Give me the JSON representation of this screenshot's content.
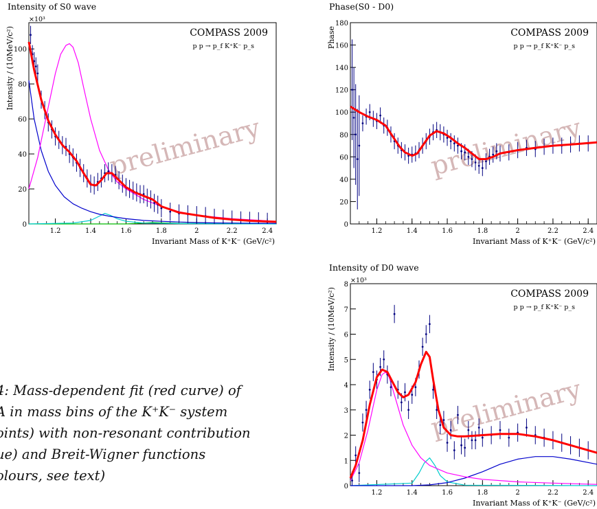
{
  "reaction": "p p → p_f K⁺K⁻ p_s",
  "caption": {
    "lines": [
      "4: Mass-dependent fit (red curve) of",
      "A in mass bins of the K⁺K⁻ system",
      "oints) with non-resonant contribution",
      "ue) and Breit-Wigner functions",
      "olours, see text)"
    ]
  },
  "colors": {
    "fit": "#ff0000",
    "background": "#0000cc",
    "bw1": "#ff00ff",
    "bw2": "#00cccc",
    "bw3": "#00bb00",
    "points": "#000080",
    "watermark": "#c8a0a0"
  },
  "chart_data": [
    {
      "type": "line",
      "title": "Intensity of S0 wave",
      "experiment": "COMPASS 2009",
      "watermark": "preliminary",
      "xlabel": "Invariant Mass of K⁺K⁻ (GeV/c²)",
      "ylabel": "Intensity / (10MeV/c²)",
      "yexponent": "×10³",
      "xlim": [
        1.05,
        2.45
      ],
      "ylim": [
        0,
        115
      ],
      "xticks": [
        "1.2",
        "1.4",
        "1.6",
        "1.8",
        "2",
        "2.2",
        "2.4"
      ],
      "yticks": [
        "0",
        "20",
        "40",
        "60",
        "80",
        "100"
      ],
      "series": [
        {
          "role": "fit",
          "x": [
            1.05,
            1.08,
            1.12,
            1.16,
            1.2,
            1.24,
            1.28,
            1.32,
            1.36,
            1.4,
            1.43,
            1.46,
            1.49,
            1.52,
            1.56,
            1.6,
            1.65,
            1.7,
            1.75,
            1.8,
            1.9,
            2.0,
            2.1,
            2.2,
            2.3,
            2.45
          ],
          "y": [
            104,
            88,
            71,
            59,
            51,
            45,
            41,
            36,
            29,
            22.5,
            22,
            25,
            29,
            29,
            25,
            21,
            18,
            16,
            14,
            10,
            6.5,
            5,
            3.5,
            2.5,
            1.8,
            1.2
          ]
        },
        {
          "role": "background",
          "x": [
            1.05,
            1.08,
            1.12,
            1.16,
            1.2,
            1.25,
            1.3,
            1.35,
            1.4,
            1.45,
            1.5,
            1.6,
            1.7,
            1.8,
            1.9,
            2.0,
            2.1,
            2.2,
            2.3,
            2.45
          ],
          "y": [
            82,
            60,
            42,
            30,
            22,
            15.5,
            11.5,
            9,
            7,
            5.5,
            4.5,
            3,
            2,
            1.5,
            1.1,
            0.8,
            0.6,
            0.5,
            0.4,
            0.3
          ]
        },
        {
          "role": "bw1",
          "x": [
            1.05,
            1.1,
            1.15,
            1.2,
            1.23,
            1.26,
            1.28,
            1.3,
            1.33,
            1.36,
            1.4,
            1.45,
            1.5,
            1.55,
            1.6,
            1.7,
            1.8,
            1.9,
            2.0,
            2.2,
            2.45
          ],
          "y": [
            20,
            38,
            62,
            86,
            97,
            102,
            103,
            101,
            92,
            78,
            60,
            42,
            31,
            24,
            20,
            14,
            10,
            7,
            5,
            3,
            1.5
          ]
        },
        {
          "role": "bw2",
          "x": [
            1.05,
            1.3,
            1.4,
            1.45,
            1.48,
            1.51,
            1.55,
            1.6,
            1.7,
            1.9,
            2.45
          ],
          "y": [
            0,
            0.5,
            2,
            4.5,
            6,
            5,
            3,
            1.5,
            0.5,
            0.2,
            0
          ]
        },
        {
          "role": "bw3",
          "x": [
            1.05,
            1.6,
            1.7,
            1.75,
            1.8,
            1.9,
            2.45
          ],
          "y": [
            0,
            0,
            0.5,
            0.8,
            0.6,
            0.3,
            0.1
          ]
        },
        {
          "role": "points",
          "x": [
            1.06,
            1.07,
            1.08,
            1.09,
            1.1,
            1.12,
            1.14,
            1.16,
            1.18,
            1.2,
            1.22,
            1.24,
            1.26,
            1.28,
            1.3,
            1.32,
            1.34,
            1.36,
            1.38,
            1.4,
            1.42,
            1.44,
            1.46,
            1.48,
            1.5,
            1.52,
            1.54,
            1.56,
            1.58,
            1.6,
            1.62,
            1.64,
            1.66,
            1.68,
            1.7,
            1.72,
            1.74,
            1.76,
            1.78,
            1.8,
            1.85,
            1.9,
            1.95,
            2.0,
            2.05,
            2.1,
            2.15,
            2.2,
            2.25,
            2.3,
            2.35,
            2.4
          ],
          "y": [
            108,
            97,
            93,
            90,
            86,
            71,
            65,
            58,
            54,
            50,
            48,
            45,
            44,
            40,
            38,
            35,
            32,
            29,
            26,
            23,
            22,
            24,
            26,
            29,
            30,
            29,
            28,
            25,
            23,
            21,
            20,
            19,
            18,
            17,
            17,
            15,
            14,
            12,
            11,
            9,
            7,
            6,
            5.5,
            5,
            4.5,
            3.5,
            3,
            2.5,
            2,
            1.8,
            1.5,
            1.2
          ]
        }
      ]
    },
    {
      "type": "line",
      "title": "Phase(S0 - D0)",
      "experiment": "COMPASS 2009",
      "watermark": "preliminary",
      "xlabel": "Invariant Mass of K⁺K⁻ (GeV/c²)",
      "ylabel": "Phase",
      "xlim": [
        1.05,
        2.45
      ],
      "ylim": [
        0,
        180
      ],
      "xticks": [
        "1.2",
        "1.4",
        "1.6",
        "1.8",
        "2",
        "2.2",
        "2.4"
      ],
      "yticks": [
        "0",
        "20",
        "40",
        "60",
        "80",
        "100",
        "120",
        "140",
        "160",
        "180"
      ],
      "series": [
        {
          "role": "fit",
          "x": [
            1.05,
            1.1,
            1.15,
            1.2,
            1.25,
            1.3,
            1.33,
            1.36,
            1.4,
            1.43,
            1.46,
            1.5,
            1.54,
            1.58,
            1.62,
            1.66,
            1.7,
            1.74,
            1.78,
            1.82,
            1.86,
            1.9,
            2.0,
            2.1,
            2.2,
            2.3,
            2.45
          ],
          "y": [
            105,
            100,
            96,
            93,
            88,
            76,
            69,
            64,
            61,
            63,
            70,
            79,
            83,
            81,
            77,
            72,
            68,
            63,
            58,
            58,
            60,
            63,
            66,
            68,
            70,
            71,
            73
          ]
        },
        {
          "role": "points",
          "x": [
            1.06,
            1.07,
            1.08,
            1.09,
            1.1,
            1.12,
            1.14,
            1.16,
            1.18,
            1.2,
            1.22,
            1.24,
            1.26,
            1.28,
            1.3,
            1.32,
            1.34,
            1.36,
            1.38,
            1.4,
            1.42,
            1.44,
            1.46,
            1.48,
            1.5,
            1.52,
            1.54,
            1.56,
            1.58,
            1.6,
            1.62,
            1.64,
            1.66,
            1.68,
            1.7,
            1.72,
            1.74,
            1.76,
            1.78,
            1.8,
            1.82,
            1.84,
            1.86,
            1.88,
            1.9,
            1.95,
            2.0,
            2.05,
            2.1,
            2.15,
            2.2,
            2.25,
            2.3,
            2.35,
            2.4
          ],
          "y": [
            120,
            95,
            80,
            58,
            70,
            90,
            96,
            100,
            94,
            92,
            97,
            88,
            86,
            80,
            74,
            70,
            66,
            64,
            61,
            62,
            63,
            66,
            70,
            74,
            78,
            82,
            84,
            82,
            80,
            77,
            74,
            72,
            70,
            65,
            64,
            60,
            58,
            55,
            52,
            50,
            56,
            60,
            62,
            65,
            63,
            64,
            66,
            68,
            67,
            69,
            70,
            70,
            71,
            72,
            72
          ]
        }
      ]
    },
    {
      "type": "line",
      "title": "Intensity of D0 wave",
      "experiment": "COMPASS 2009",
      "watermark": "preliminary",
      "xlabel": "Invariant Mass of K⁺K⁻ (GeV/c²)",
      "ylabel": "Intensity / (10MeV/c²)",
      "yexponent": "×10³",
      "xlim": [
        1.05,
        2.45
      ],
      "ylim": [
        0,
        8
      ],
      "xticks": [
        "1.2",
        "1.4",
        "1.6",
        "1.8",
        "2",
        "2.2",
        "2.4"
      ],
      "yticks": [
        "0",
        "1",
        "2",
        "3",
        "4",
        "5",
        "6",
        "7",
        "8"
      ],
      "series": [
        {
          "role": "fit",
          "x": [
            1.05,
            1.08,
            1.12,
            1.16,
            1.2,
            1.23,
            1.26,
            1.29,
            1.32,
            1.35,
            1.38,
            1.42,
            1.45,
            1.48,
            1.5,
            1.52,
            1.55,
            1.58,
            1.62,
            1.66,
            1.7,
            1.8,
            1.9,
            2.0,
            2.1,
            2.2,
            2.3,
            2.45
          ],
          "y": [
            0.3,
            0.8,
            1.8,
            3.2,
            4.3,
            4.6,
            4.5,
            4.1,
            3.7,
            3.5,
            3.6,
            4.1,
            4.8,
            5.3,
            5.1,
            4.2,
            3.0,
            2.3,
            2.0,
            1.95,
            1.95,
            2.0,
            2.05,
            2.05,
            1.95,
            1.8,
            1.6,
            1.3
          ]
        },
        {
          "role": "bw1",
          "x": [
            1.05,
            1.1,
            1.15,
            1.2,
            1.23,
            1.25,
            1.27,
            1.3,
            1.35,
            1.4,
            1.45,
            1.5,
            1.6,
            1.7,
            1.8,
            2.0,
            2.2,
            2.45
          ],
          "y": [
            0.2,
            0.9,
            2.2,
            3.8,
            4.4,
            4.5,
            4.3,
            3.6,
            2.4,
            1.6,
            1.1,
            0.8,
            0.5,
            0.35,
            0.25,
            0.15,
            0.1,
            0.05
          ]
        },
        {
          "role": "bw2",
          "x": [
            1.05,
            1.4,
            1.44,
            1.47,
            1.5,
            1.53,
            1.56,
            1.6,
            1.7,
            2.45
          ],
          "y": [
            0,
            0.1,
            0.5,
            0.9,
            1.1,
            0.8,
            0.4,
            0.15,
            0.02,
            0
          ]
        },
        {
          "role": "background",
          "x": [
            1.05,
            1.4,
            1.5,
            1.6,
            1.7,
            1.8,
            1.9,
            2.0,
            2.1,
            2.2,
            2.3,
            2.45
          ],
          "y": [
            0,
            0,
            0.03,
            0.12,
            0.3,
            0.55,
            0.85,
            1.05,
            1.15,
            1.15,
            1.05,
            0.85
          ]
        },
        {
          "role": "points",
          "x": [
            1.06,
            1.08,
            1.1,
            1.12,
            1.14,
            1.16,
            1.18,
            1.2,
            1.22,
            1.24,
            1.26,
            1.28,
            1.3,
            1.32,
            1.34,
            1.36,
            1.38,
            1.4,
            1.42,
            1.44,
            1.46,
            1.48,
            1.5,
            1.52,
            1.54,
            1.56,
            1.58,
            1.6,
            1.62,
            1.64,
            1.66,
            1.68,
            1.7,
            1.72,
            1.74,
            1.76,
            1.78,
            1.8,
            1.85,
            1.9,
            1.95,
            2.0,
            2.05,
            2.1,
            2.15,
            2.2,
            2.25,
            2.3,
            2.35,
            2.4
          ],
          "y": [
            0.2,
            1.2,
            0.5,
            2.5,
            3.0,
            3.8,
            4.5,
            4.2,
            4.7,
            5.0,
            4.4,
            3.9,
            6.8,
            3.8,
            3.3,
            3.7,
            3.0,
            3.6,
            3.9,
            4.6,
            5.5,
            6.0,
            6.4,
            3.8,
            3.0,
            2.4,
            2.6,
            1.7,
            2.2,
            1.4,
            2.8,
            1.6,
            1.5,
            2.2,
            1.8,
            1.8,
            2.3,
            1.9,
            2.0,
            2.2,
            1.9,
            2.1,
            2.3,
            2.0,
            1.9,
            1.8,
            1.7,
            1.6,
            1.5,
            1.4
          ]
        }
      ]
    }
  ]
}
